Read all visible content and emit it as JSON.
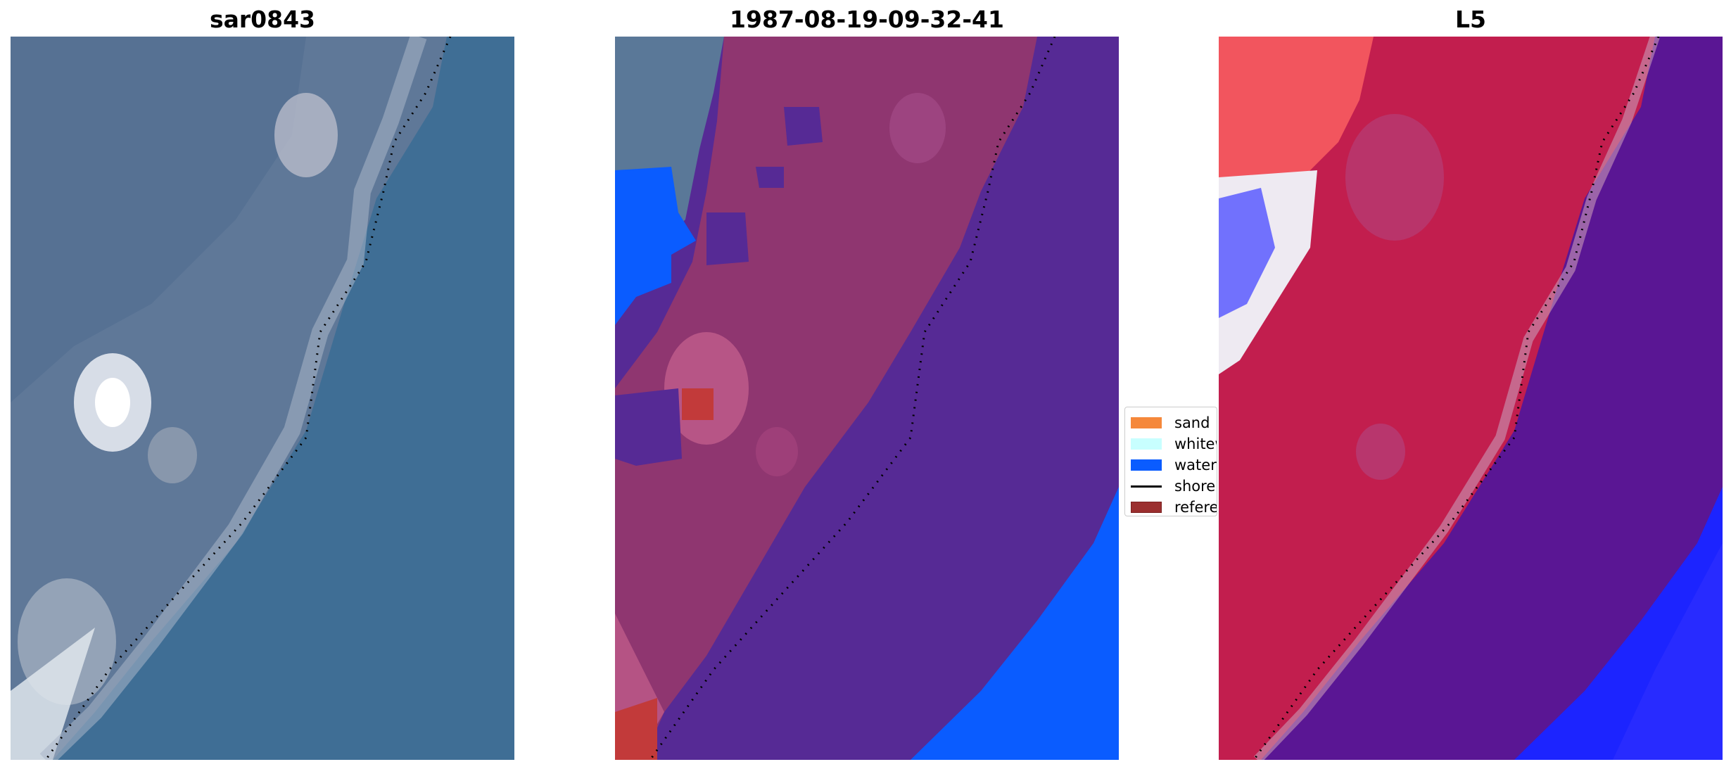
{
  "panels": [
    {
      "id": "rgb",
      "title": "sar0843"
    },
    {
      "id": "classification",
      "title": "1987-08-19-09-32-41"
    },
    {
      "id": "mndwi",
      "title": "L5"
    }
  ],
  "legend": {
    "items": [
      {
        "label": "sand",
        "color": "#f5883b"
      },
      {
        "label": "whitewater",
        "color": "#c8ffff"
      },
      {
        "label": "water",
        "color": "#0a5cff"
      },
      {
        "label": "shoreline",
        "color": "#000000"
      },
      {
        "label": "reference",
        "color": "#9b2f2f"
      }
    ]
  },
  "colors": {
    "sea_rgb": "#3f6d94",
    "land_rgb": "#5e7898",
    "class_land": "#8f3670",
    "class_sea": "#562a95",
    "class_water": "#0a5cff",
    "mndwi_land": "#c21e4e",
    "mndwi_sea": "#5a1694",
    "mndwi_water": "#1c24ff"
  }
}
